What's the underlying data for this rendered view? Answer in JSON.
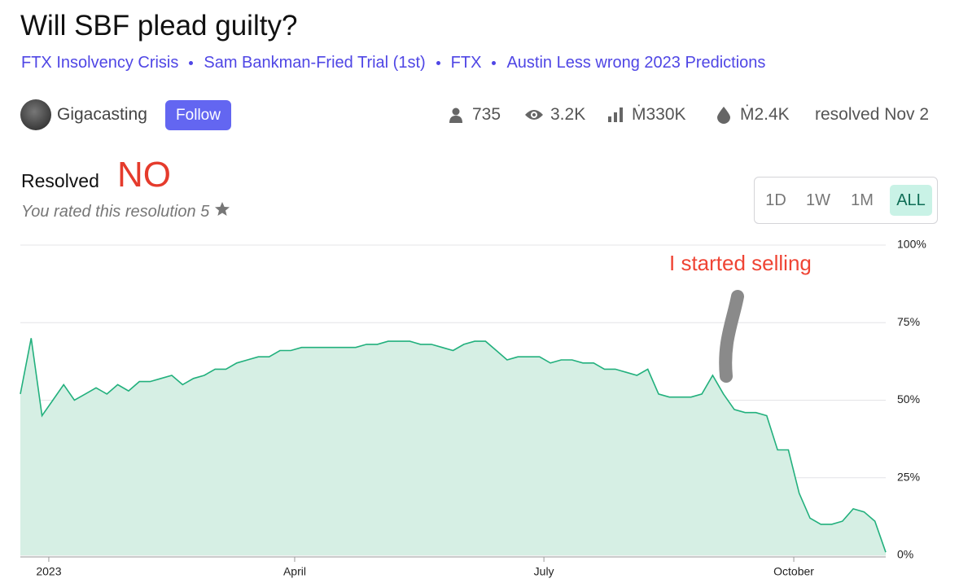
{
  "header": {
    "title": "Will SBF plead guilty?",
    "tags": [
      "FTX Insolvency Crisis",
      "Sam Bankman-Fried Trial (1st)",
      "FTX",
      "Austin Less wrong 2023 Predictions"
    ],
    "author": "Gigacasting",
    "follow": "Follow",
    "stats": {
      "traders": "735",
      "views": "3.2K",
      "volume": "Ṁ330K",
      "liquidity": "Ṁ2.4K",
      "resolved": "resolved Nov 2"
    }
  },
  "resolution": {
    "label": "Resolved",
    "outcome": "NO",
    "rating": "You rated this resolution 5"
  },
  "range_buttons": [
    "1D",
    "1W",
    "1M",
    "ALL"
  ],
  "chart_data": {
    "type": "line",
    "color": "#22b07d",
    "fill": "#d6efe4",
    "values": [
      52,
      70,
      45,
      50,
      55,
      50,
      52,
      54,
      52,
      55,
      53,
      56,
      56,
      57,
      58,
      55,
      57,
      58,
      60,
      60,
      62,
      63,
      64,
      64,
      66,
      66,
      67,
      67,
      67,
      67,
      67,
      67,
      68,
      68,
      69,
      69,
      69,
      68,
      68,
      67,
      66,
      68,
      69,
      69,
      66,
      63,
      64,
      64,
      64,
      62,
      63,
      63,
      62,
      62,
      60,
      60,
      59,
      58,
      60,
      52,
      51,
      51,
      51,
      52,
      58,
      52,
      47,
      46,
      46,
      45,
      34,
      34,
      20,
      12,
      10,
      10,
      11,
      15,
      14,
      11,
      1
    ],
    "xlim": [
      0,
      80
    ],
    "xticks": [
      {
        "value": 2.63,
        "label": "2023"
      },
      {
        "value": 25.36,
        "label": "April"
      },
      {
        "value": 48.4,
        "label": "July"
      },
      {
        "value": 71.5,
        "label": "October"
      }
    ],
    "ylim": [
      0,
      100
    ],
    "yticks": [
      {
        "value": 0,
        "label": "0%"
      },
      {
        "value": 25,
        "label": "25%"
      },
      {
        "value": 50,
        "label": "50%"
      },
      {
        "value": 75,
        "label": "75%"
      },
      {
        "value": 100,
        "label": "100%"
      }
    ],
    "grid": true,
    "annotation": "I started selling"
  }
}
